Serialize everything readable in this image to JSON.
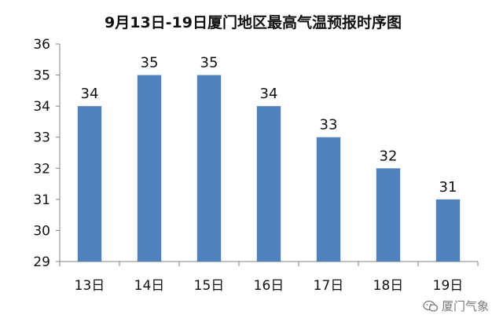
{
  "chart_data": {
    "type": "bar",
    "title": "9月13日-19日厦门地区最高气温预报时序图",
    "categories": [
      "13日",
      "14日",
      "15日",
      "16日",
      "17日",
      "18日",
      "19日"
    ],
    "values": [
      34,
      35,
      35,
      34,
      33,
      32,
      31
    ],
    "ylim": [
      29,
      36
    ],
    "yticks": [
      "29",
      "30",
      "31",
      "32",
      "33",
      "34",
      "35",
      "36"
    ],
    "bar_color": "#4F81BD",
    "grid": false,
    "legend": "none"
  },
  "watermark": {
    "text": "厦门气象",
    "icon": "wechat-icon"
  }
}
